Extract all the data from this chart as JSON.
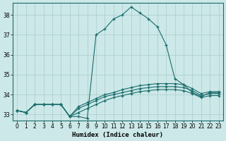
{
  "xlabel": "Humidex (Indice chaleur)",
  "xlim": [
    -0.5,
    23.5
  ],
  "ylim": [
    32.7,
    38.6
  ],
  "yticks": [
    33,
    34,
    35,
    36,
    37,
    38
  ],
  "xticks": [
    0,
    1,
    2,
    3,
    4,
    5,
    6,
    7,
    8,
    9,
    10,
    11,
    12,
    13,
    14,
    15,
    16,
    17,
    18,
    19,
    20,
    21,
    22,
    23
  ],
  "background_color": "#cce8e8",
  "grid_color": "#aacccc",
  "line_color": "#1a6b6b",
  "series": [
    [
      33.2,
      33.1,
      33.5,
      33.5,
      33.5,
      33.5,
      32.9,
      32.9,
      32.8,
      37.0,
      37.3,
      37.8,
      38.0,
      38.4,
      38.1,
      37.8,
      37.4,
      36.5,
      34.8,
      34.5,
      34.1,
      33.9,
      34.1,
      34.1
    ],
    [
      33.2,
      33.1,
      33.5,
      33.5,
      33.5,
      33.5,
      32.9,
      33.4,
      33.6,
      33.8,
      34.0,
      34.1,
      34.25,
      34.35,
      34.45,
      34.5,
      34.55,
      34.55,
      34.55,
      34.5,
      34.3,
      34.05,
      34.15,
      34.15
    ],
    [
      33.2,
      33.1,
      33.5,
      33.5,
      33.5,
      33.5,
      32.9,
      33.3,
      33.5,
      33.7,
      33.9,
      34.0,
      34.1,
      34.2,
      34.3,
      34.35,
      34.4,
      34.4,
      34.4,
      34.35,
      34.2,
      33.95,
      34.05,
      34.05
    ],
    [
      33.2,
      33.1,
      33.5,
      33.5,
      33.5,
      33.5,
      32.9,
      33.1,
      33.3,
      33.5,
      33.7,
      33.85,
      33.95,
      34.05,
      34.15,
      34.2,
      34.25,
      34.25,
      34.25,
      34.2,
      34.05,
      33.85,
      33.95,
      33.95
    ]
  ]
}
